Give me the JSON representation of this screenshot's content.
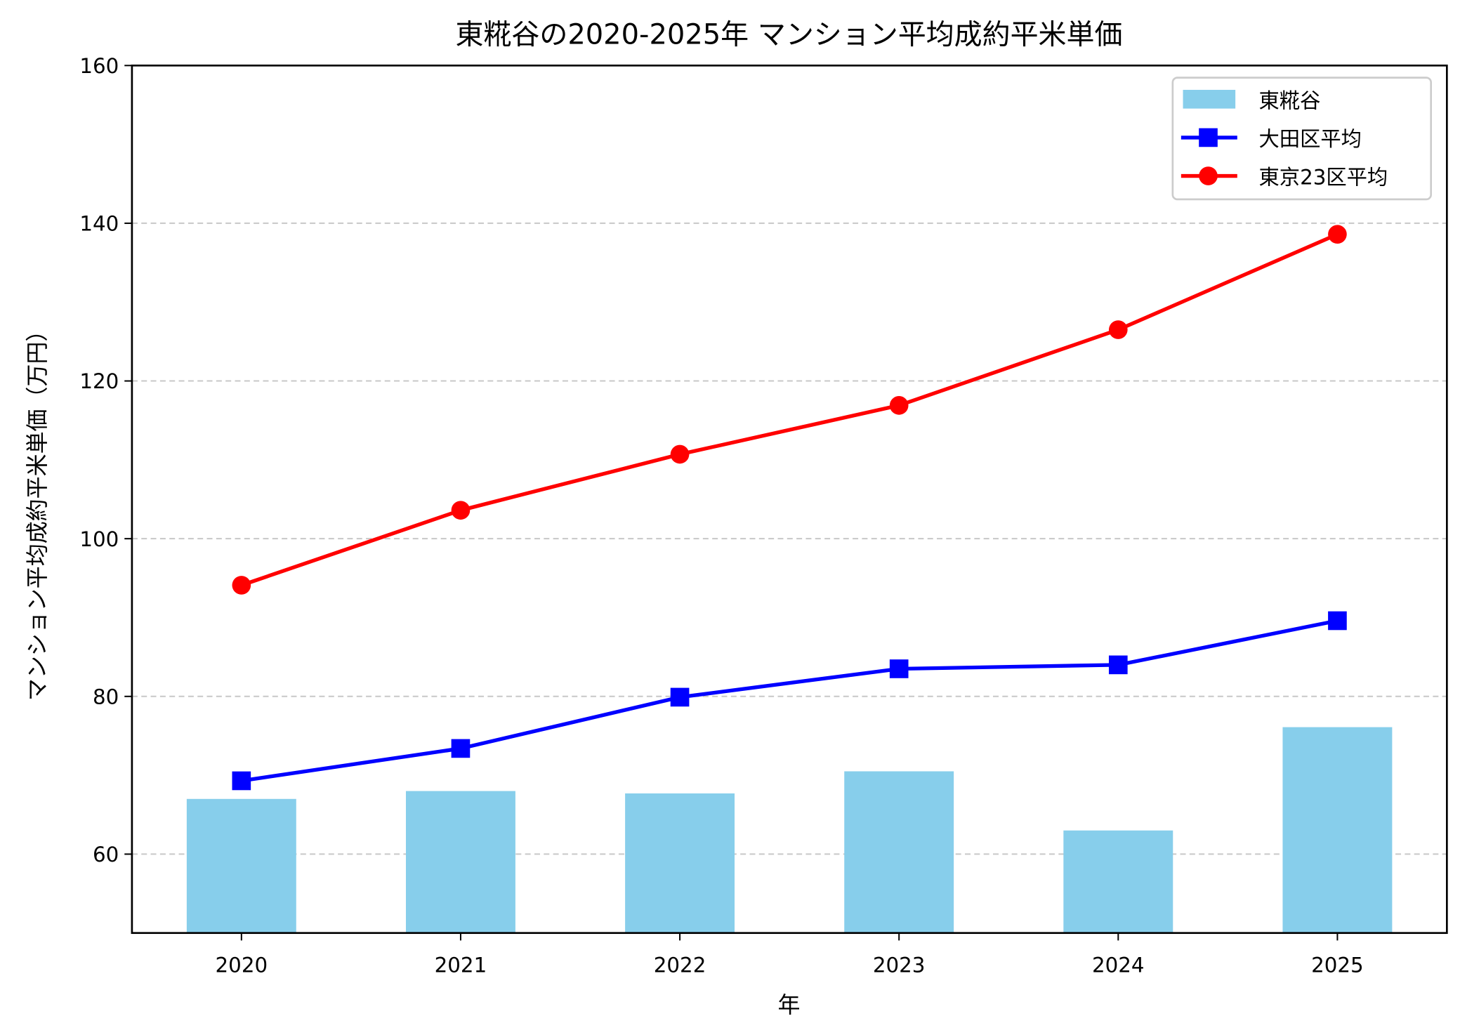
{
  "chart_data": {
    "type": "bar+line",
    "title": "東糀谷の2020-2025年 マンション平均成約平米単価",
    "xlabel": "年",
    "ylabel": "マンション平均成約平米単価（万円）",
    "categories": [
      "2020",
      "2021",
      "2022",
      "2023",
      "2024",
      "2025"
    ],
    "ylim": [
      50,
      160
    ],
    "yticks": [
      60,
      80,
      100,
      120,
      140,
      160
    ],
    "grid": "y dashed",
    "legend_position": "top-right",
    "series": [
      {
        "name": "東糀谷",
        "type": "bar",
        "color": "#87ceeb",
        "values": [
          67.0,
          68.0,
          67.7,
          70.5,
          63.0,
          76.1
        ]
      },
      {
        "name": "大田区平均",
        "type": "line",
        "marker": "square",
        "color": "#0000ff",
        "values": [
          69.3,
          73.4,
          79.9,
          83.5,
          84.0,
          89.6
        ]
      },
      {
        "name": "東京23区平均",
        "type": "line",
        "marker": "circle",
        "color": "#ff0000",
        "values": [
          94.1,
          103.6,
          110.7,
          116.9,
          126.5,
          138.6
        ]
      }
    ]
  }
}
